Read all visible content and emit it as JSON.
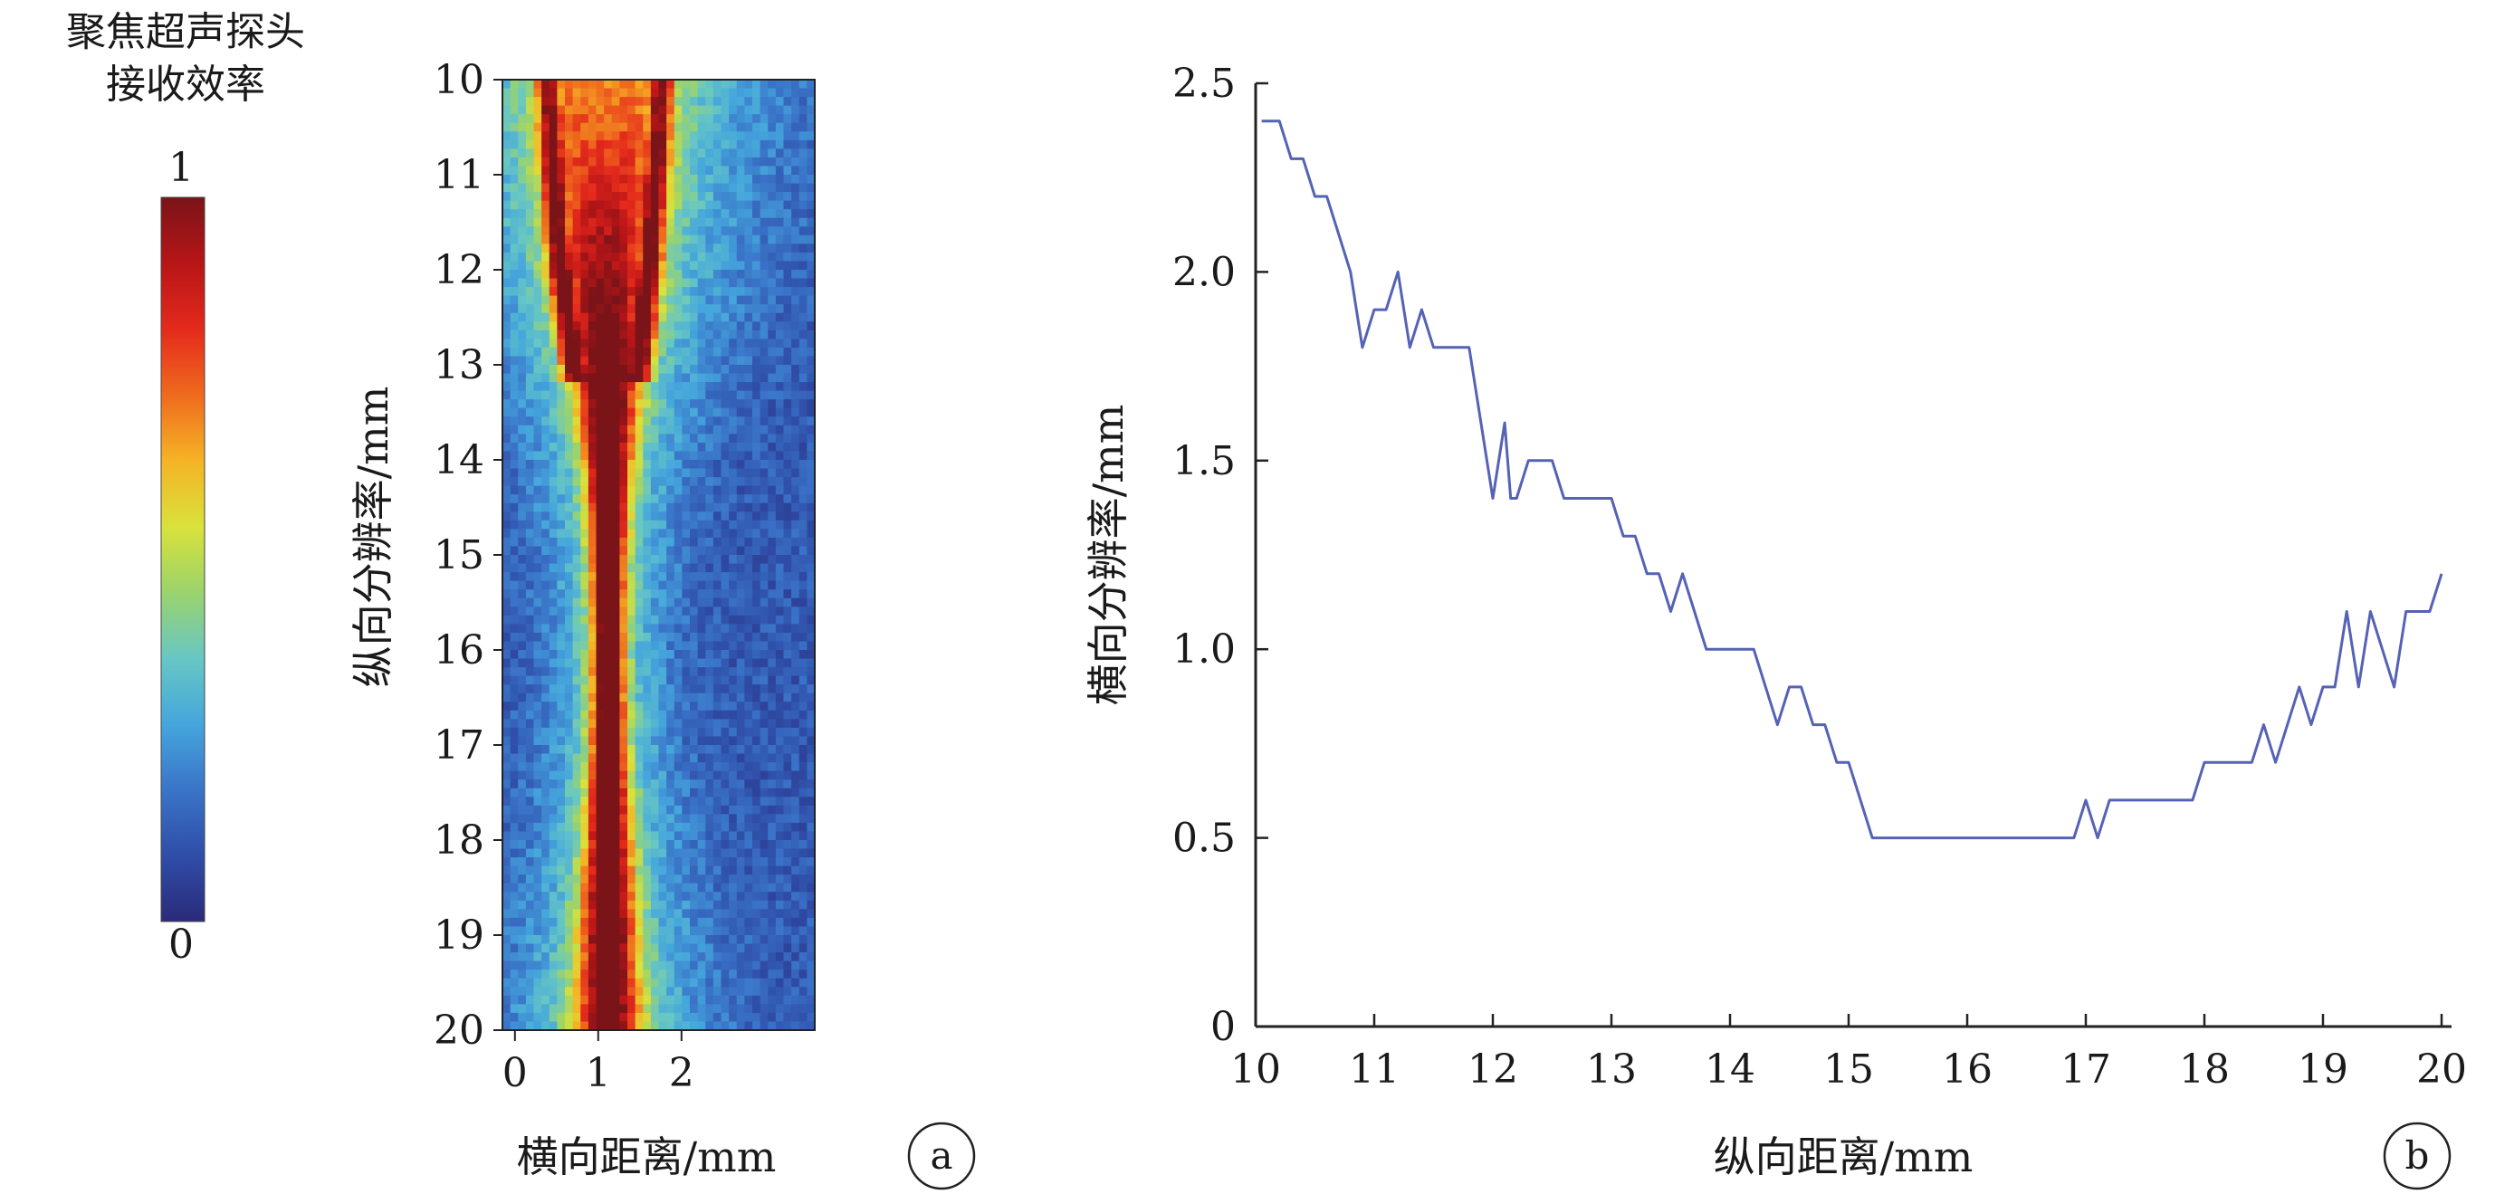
{
  "colorbar": {
    "title_line1": "聚焦超声探头",
    "title_line2": "接收效率",
    "max_label": "1",
    "min_label": "0",
    "colors": [
      "#2b2a7a",
      "#2f4ea8",
      "#3a74c8",
      "#45a6dc",
      "#67c7c4",
      "#9bd36c",
      "#d9e23a",
      "#f5b325",
      "#ef6a1e",
      "#e42a1c",
      "#b71517",
      "#7a1418"
    ]
  },
  "panel_a": {
    "ylabel": "纵向分辨率/mm",
    "xlabel": "横向距离/mm",
    "yticks": [
      "10",
      "11",
      "12",
      "13",
      "14",
      "15",
      "16",
      "17",
      "18",
      "19",
      "20"
    ],
    "xticks": [
      "0",
      "1",
      "2"
    ],
    "badge": "a"
  },
  "panel_b": {
    "ylabel": "横向分辨率/mm",
    "xlabel": "纵向距离/mm",
    "yticks": [
      "0",
      "0.5",
      "1.0",
      "1.5",
      "2.0",
      "2.5"
    ],
    "xticks": [
      "10",
      "11",
      "12",
      "13",
      "14",
      "15",
      "16",
      "17",
      "18",
      "19",
      "20"
    ],
    "badge": "b",
    "line_color": "#5562b5"
  },
  "chart_data": [
    {
      "type": "heatmap",
      "xlabel": "横向距离/mm",
      "ylabel": "纵向分辨率/mm",
      "xlim": [
        -0.15,
        3.6
      ],
      "ylim": [
        10,
        20
      ],
      "x_ticks": [
        0,
        1,
        2
      ],
      "y_ticks": [
        10,
        11,
        12,
        13,
        14,
        15,
        16,
        17,
        18,
        19,
        20
      ],
      "colorbar_range": [
        0,
        1
      ],
      "colorbar_title": "聚焦超声探头接收效率",
      "rows_y_mm": [
        10,
        11,
        12,
        13,
        14,
        15,
        16,
        17,
        18,
        19,
        20
      ],
      "beam_center_x_mm": [
        1.08,
        1.08,
        1.08,
        1.1,
        1.12,
        1.12,
        1.12,
        1.12,
        1.12,
        1.12,
        1.12
      ],
      "beam_half_width_mm": [
        0.8,
        0.72,
        0.62,
        0.45,
        0.3,
        0.22,
        0.2,
        0.22,
        0.28,
        0.36,
        0.42
      ],
      "peak_efficiency": [
        0.75,
        0.8,
        0.85,
        0.9,
        0.95,
        0.98,
        1.0,
        0.98,
        0.95,
        0.9,
        0.85
      ]
    },
    {
      "type": "line",
      "xlabel": "纵向距离/mm",
      "ylabel": "横向分辨率/mm",
      "xlim": [
        10,
        20
      ],
      "ylim": [
        0,
        2.5
      ],
      "x": [
        10.05,
        10.2,
        10.3,
        10.4,
        10.5,
        10.6,
        10.7,
        10.8,
        10.85,
        10.9,
        11.0,
        11.1,
        11.2,
        11.3,
        11.4,
        11.5,
        11.6,
        11.7,
        11.8,
        11.9,
        12.0,
        12.1,
        12.15,
        12.2,
        12.3,
        12.4,
        12.5,
        12.6,
        12.7,
        12.8,
        12.9,
        13.0,
        13.1,
        13.2,
        13.3,
        13.4,
        13.5,
        13.6,
        13.7,
        13.8,
        13.9,
        14.0,
        14.1,
        14.2,
        14.3,
        14.4,
        14.5,
        14.6,
        14.7,
        14.8,
        14.9,
        15.0,
        15.1,
        15.2,
        15.3,
        15.5,
        16.0,
        16.5,
        16.9,
        17.0,
        17.1,
        17.2,
        17.5,
        17.8,
        17.9,
        18.0,
        18.2,
        18.4,
        18.5,
        18.6,
        18.7,
        18.8,
        18.9,
        19.0,
        19.1,
        19.2,
        19.3,
        19.4,
        19.5,
        19.6,
        19.7,
        19.8,
        19.9,
        20.0
      ],
      "y": [
        2.4,
        2.4,
        2.3,
        2.3,
        2.2,
        2.2,
        2.1,
        2.0,
        1.9,
        1.8,
        1.9,
        1.9,
        2.0,
        1.8,
        1.9,
        1.8,
        1.8,
        1.8,
        1.8,
        1.6,
        1.4,
        1.6,
        1.4,
        1.4,
        1.5,
        1.5,
        1.5,
        1.4,
        1.4,
        1.4,
        1.4,
        1.4,
        1.3,
        1.3,
        1.2,
        1.2,
        1.1,
        1.2,
        1.1,
        1.0,
        1.0,
        1.0,
        1.0,
        1.0,
        0.9,
        0.8,
        0.9,
        0.9,
        0.8,
        0.8,
        0.7,
        0.7,
        0.6,
        0.5,
        0.5,
        0.5,
        0.5,
        0.5,
        0.5,
        0.6,
        0.5,
        0.6,
        0.6,
        0.6,
        0.6,
        0.7,
        0.7,
        0.7,
        0.8,
        0.7,
        0.8,
        0.9,
        0.8,
        0.9,
        0.9,
        1.1,
        0.9,
        1.1,
        1.0,
        0.9,
        1.1,
        1.1,
        1.1,
        1.2
      ]
    }
  ]
}
